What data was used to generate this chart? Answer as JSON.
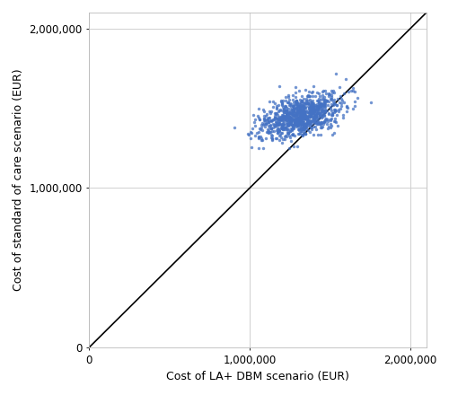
{
  "title": "",
  "xlabel": "Cost of LA+ DBM scenario (EUR)",
  "ylabel": "Cost of standard of care scenario (EUR)",
  "xlim": [
    0,
    2100000
  ],
  "ylim": [
    0,
    2100000
  ],
  "xticks": [
    0,
    1000000,
    2000000
  ],
  "yticks": [
    0,
    1000000,
    2000000
  ],
  "xtick_labels": [
    "0",
    "1,000,000",
    "2,000,000"
  ],
  "ytick_labels": [
    "0",
    "1,000,000",
    "2,000,000"
  ],
  "diagonal_color": "#000000",
  "dot_color": "#4472C4",
  "dot_size": 6,
  "dot_alpha": 0.75,
  "grid_color": "#d0d0d0",
  "background_color": "#ffffff",
  "cluster_x_mean": 1320000,
  "cluster_y_mean": 1450000,
  "cluster_x_std": 130000,
  "cluster_y_std": 70000,
  "correlation": 0.5,
  "n_points": 1000,
  "seed": 42
}
